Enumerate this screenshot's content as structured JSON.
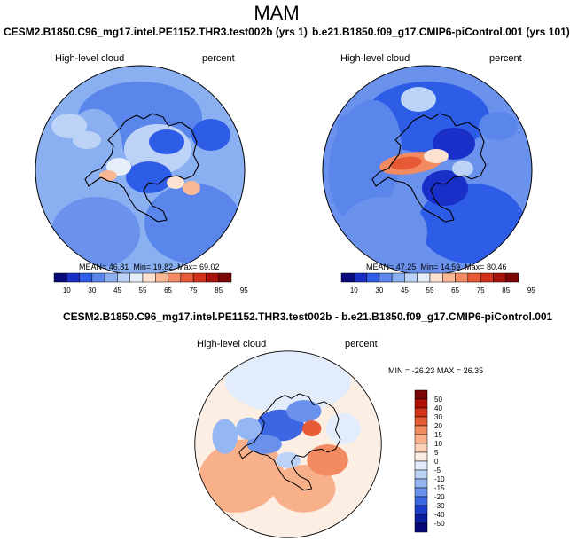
{
  "title": "MAM",
  "panels": [
    {
      "case": "CESM2.B1850.C96_mg17.intel.PE1152.THR3.test002b (yrs 1)",
      "variable": "High-level cloud",
      "units": "percent",
      "mean": "46.81",
      "min": "19.82",
      "max": "69.02"
    },
    {
      "case": "b.e21.B1850.f09_g17.CMIP6-piControl.001 (yrs 101)",
      "variable": "High-level cloud",
      "units": "percent",
      "mean": "47.25",
      "min": "14.59",
      "max": "80.46"
    },
    {
      "case": "CESM2.B1850.C96_mg17.intel.PE1152.THR3.test002b - b.e21.B1850.f09_g17.CMIP6-piControl.001",
      "variable": "High-level cloud",
      "units": "percent",
      "min": "-26.23",
      "max": "26.35"
    }
  ],
  "labels": {
    "mean": "MEAN=",
    "min": "Min=",
    "max": "Max=",
    "min_caps": "MIN =",
    "max_caps": "MAX ="
  },
  "colorbar_abs": {
    "ticks": [
      "10",
      "30",
      "45",
      "55",
      "65",
      "75",
      "85",
      "95"
    ],
    "colors": [
      "#08087a",
      "#1a2fc8",
      "#2d5ce6",
      "#5a86ec",
      "#8ab0f2",
      "#bcd3f7",
      "#e6eefa",
      "#fde2d2",
      "#f8b896",
      "#f28a62",
      "#e65a36",
      "#d3321a",
      "#a8140c",
      "#7a0606"
    ]
  },
  "colorbar_diff": {
    "ticks": [
      "50",
      "40",
      "30",
      "20",
      "15",
      "10",
      "5",
      "0",
      "-5",
      "-10",
      "-15",
      "-20",
      "-30",
      "-40",
      "-50"
    ],
    "colors": [
      "#7a0606",
      "#b01208",
      "#d3321a",
      "#e65a36",
      "#f28a62",
      "#f8b08a",
      "#fbd2b8",
      "#fdeee4",
      "#e2ecfa",
      "#bcd3f7",
      "#94b6f2",
      "#6a92ec",
      "#3c66e2",
      "#1a3cc8",
      "#0c1ea0",
      "#06087a"
    ]
  }
}
